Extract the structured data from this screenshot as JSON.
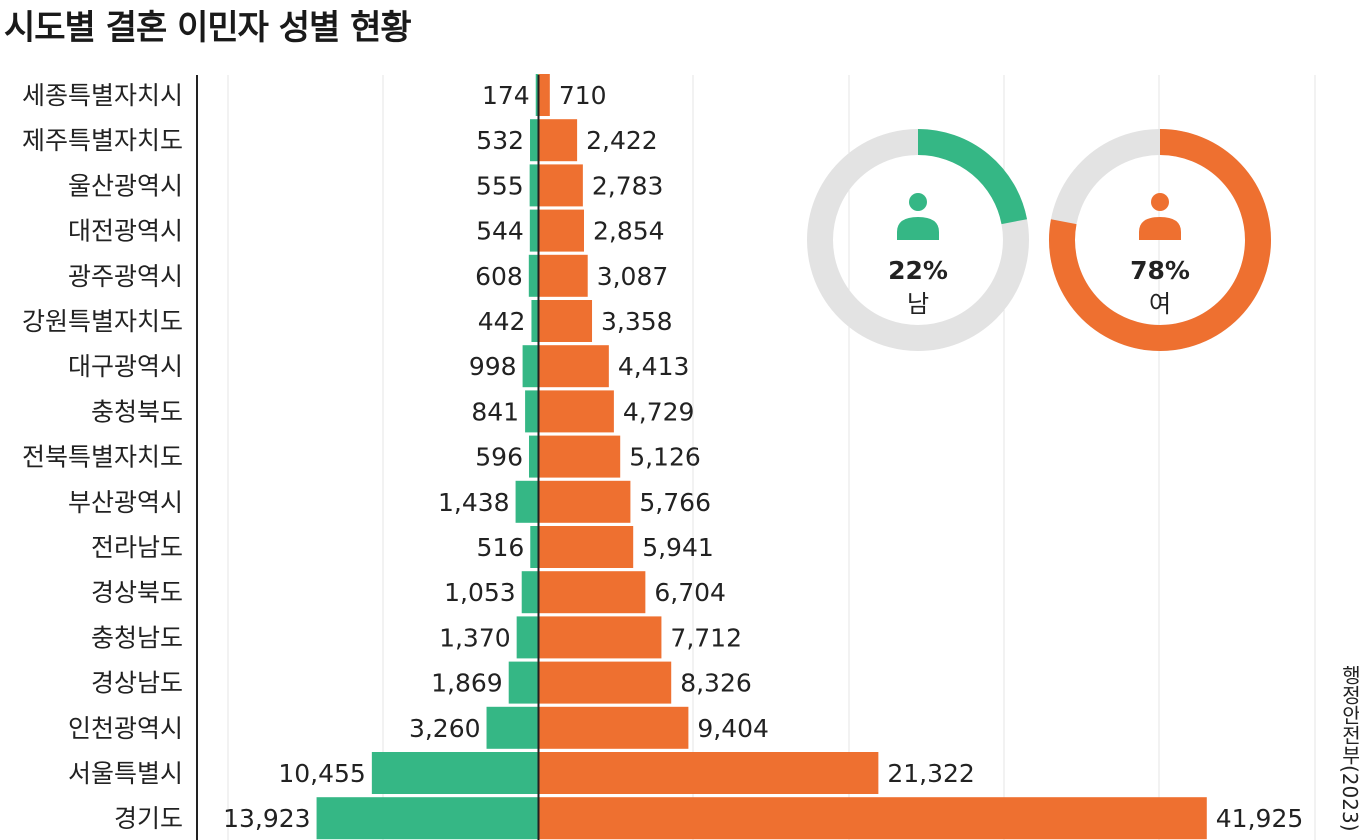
{
  "title": "시도별 결혼 이민자 성별 현황",
  "source": "행정안전부(2023)",
  "colors": {
    "male": "#35b785",
    "female": "#ee7030",
    "track": "#e3e3e3",
    "grid": "#e6e6e6",
    "axis": "#222222"
  },
  "chart_data": {
    "type": "bar",
    "orientation": "horizontal-diverging",
    "title": "시도별 결혼 이민자 성별 현황",
    "categories": [
      "세종특별자치시",
      "제주특별자치도",
      "울산광역시",
      "대전광역시",
      "광주광역시",
      "강원특별자치도",
      "대구광역시",
      "충청북도",
      "전북특별자치도",
      "부산광역시",
      "전라남도",
      "경상북도",
      "충청남도",
      "경상남도",
      "인천광역시",
      "서울특별시",
      "경기도"
    ],
    "series": [
      {
        "color": "#35b785",
        "side": "left",
        "values": [
          174,
          532,
          555,
          544,
          608,
          442,
          998,
          841,
          596,
          1438,
          516,
          1053,
          1370,
          1869,
          3260,
          10455,
          13923
        ],
        "labels": [
          "174",
          "532",
          "555",
          "544",
          "608",
          "442",
          "998",
          "841",
          "596",
          "1,438",
          "516",
          "1,053",
          "1,370",
          "1,869",
          "3,260",
          "10,455",
          "13,923"
        ]
      },
      {
        "color": "#ee7030",
        "side": "right",
        "values": [
          710,
          2422,
          2783,
          2854,
          3087,
          3358,
          4413,
          4729,
          5126,
          5766,
          5941,
          6704,
          7712,
          8326,
          9404,
          21322,
          41925
        ],
        "labels": [
          "710",
          "2,422",
          "2,783",
          "2,854",
          "3,087",
          "3,358",
          "4,413",
          "4,729",
          "5,126",
          "5,766",
          "5,941",
          "6,704",
          "7,712",
          "8,326",
          "9,404",
          "21,322",
          "41,925"
        ]
      }
    ],
    "grid": true,
    "donuts": [
      {
        "name": "남",
        "percent": 22,
        "label": "22%",
        "color": "#35b785",
        "icon": "person-icon"
      },
      {
        "name": "여",
        "percent": 78,
        "label": "78%",
        "color": "#ee7030",
        "icon": "person-icon"
      }
    ]
  }
}
